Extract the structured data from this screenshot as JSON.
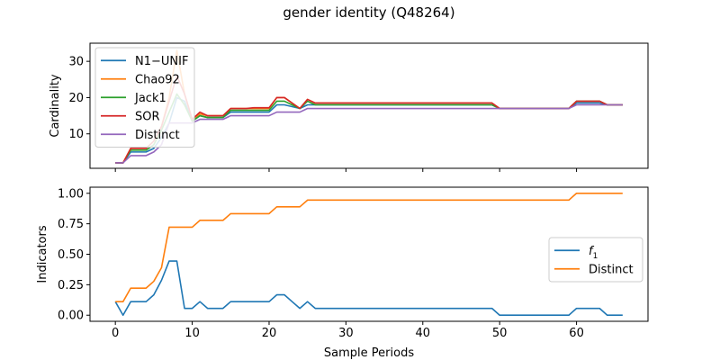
{
  "figure": {
    "title": "gender identity (Q48264)"
  },
  "colors": {
    "blue": "#1f77b4",
    "orange": "#ff7f0e",
    "green": "#2ca02c",
    "red": "#d62728",
    "purple": "#9467bd"
  },
  "chart_data": [
    {
      "type": "line",
      "ylabel": "Cardinality",
      "xlabel": "",
      "xlim": [
        -3.3,
        69.3
      ],
      "ylim": [
        0.5,
        35
      ],
      "xticks": [
        0,
        10,
        20,
        30,
        40,
        50,
        60
      ],
      "show_xtick_labels": false,
      "yticks": [
        10,
        20,
        30
      ],
      "ytick_labels": [
        "10",
        "20",
        "30"
      ],
      "grid": false,
      "legend_position": "upper-left",
      "series": [
        {
          "name": "N1−UNIF",
          "color": "#1f77b4",
          "x": [
            0,
            1,
            2,
            3,
            4,
            5,
            6,
            7,
            8,
            9,
            10,
            11,
            12,
            13,
            14,
            15,
            16,
            17,
            18,
            19,
            20,
            21,
            22,
            23,
            24,
            25,
            26,
            49,
            50,
            59,
            60,
            61,
            62,
            63,
            64,
            65,
            66
          ],
          "y": [
            2,
            2,
            5,
            5,
            5,
            6,
            9,
            13,
            20,
            19,
            13.5,
            15,
            14.5,
            14.5,
            14.5,
            16,
            16,
            16,
            16,
            16,
            16,
            18,
            18,
            17.5,
            17,
            18,
            18,
            18,
            17,
            17,
            18.5,
            18.5,
            18.5,
            18.5,
            18,
            18,
            18
          ]
        },
        {
          "name": "Chao92",
          "color": "#ff7f0e",
          "x": [
            0,
            1,
            2,
            3,
            4,
            5,
            6,
            7,
            8,
            9,
            10,
            11,
            12,
            13,
            14,
            15,
            16,
            17,
            18,
            19,
            20,
            21,
            22,
            23,
            24,
            25,
            26,
            49,
            50,
            59,
            60,
            61,
            62,
            63,
            64,
            65,
            66
          ],
          "y": [
            2,
            2,
            6,
            6,
            6,
            8,
            12,
            20,
            33,
            21,
            14,
            15.5,
            15,
            15,
            15,
            17,
            17,
            17,
            17,
            17,
            17,
            20,
            20,
            18.5,
            17,
            19.5,
            18.5,
            18.5,
            17,
            17,
            19,
            19,
            19,
            19,
            18,
            18,
            18
          ]
        },
        {
          "name": "Jack1",
          "color": "#2ca02c",
          "x": [
            0,
            1,
            2,
            3,
            4,
            5,
            6,
            7,
            8,
            9,
            10,
            11,
            12,
            13,
            14,
            15,
            16,
            17,
            18,
            19,
            20,
            21,
            22,
            23,
            24,
            25,
            26,
            49,
            50,
            59,
            60,
            61,
            62,
            63,
            64,
            65,
            66
          ],
          "y": [
            2,
            2,
            5.5,
            5.5,
            5.5,
            7,
            11,
            16,
            21,
            18,
            13.5,
            15,
            14.5,
            14.5,
            14.5,
            16.5,
            16.5,
            16.5,
            16.5,
            16.5,
            16.5,
            19,
            19,
            18,
            17,
            19,
            18,
            18,
            17,
            17,
            19,
            19,
            19,
            19,
            18,
            18,
            18
          ]
        },
        {
          "name": "SOR",
          "color": "#d62728",
          "x": [
            0,
            1,
            2,
            3,
            4,
            5,
            6,
            7,
            8,
            9,
            10,
            11,
            12,
            13,
            14,
            15,
            16,
            17,
            18,
            19,
            20,
            21,
            22,
            23,
            24,
            25,
            26,
            49,
            50,
            59,
            60,
            61,
            62,
            63,
            64,
            65,
            66
          ],
          "y": [
            2,
            2,
            6,
            6,
            6,
            8,
            12,
            19,
            26,
            21,
            14,
            16,
            15,
            15,
            15,
            17,
            17,
            17,
            17.2,
            17.2,
            17.2,
            20,
            20,
            18.5,
            17,
            19.5,
            18.5,
            18.5,
            17,
            17,
            19,
            19,
            19,
            19,
            18,
            18,
            18
          ]
        },
        {
          "name": "Distinct",
          "color": "#9467bd",
          "x": [
            0,
            1,
            2,
            3,
            4,
            5,
            6,
            7,
            8,
            9,
            10,
            11,
            12,
            13,
            14,
            15,
            16,
            17,
            18,
            19,
            20,
            21,
            22,
            23,
            24,
            25,
            26,
            49,
            50,
            59,
            60,
            61,
            62,
            63,
            64,
            65,
            66
          ],
          "y": [
            2,
            2,
            4,
            4,
            4,
            5,
            7,
            13,
            13,
            13,
            13,
            14,
            14,
            14,
            14,
            15,
            15,
            15,
            15,
            15,
            15,
            16,
            16,
            16,
            16,
            17,
            17,
            17,
            17,
            17,
            18,
            18,
            18,
            18,
            18,
            18,
            18
          ]
        }
      ]
    },
    {
      "type": "line",
      "ylabel": "Indicators",
      "xlabel": "Sample Periods",
      "xlim": [
        -3.3,
        69.3
      ],
      "ylim": [
        -0.05,
        1.05
      ],
      "xticks": [
        0,
        10,
        20,
        30,
        40,
        50,
        60
      ],
      "xtick_labels": [
        "0",
        "10",
        "20",
        "30",
        "40",
        "50",
        "60"
      ],
      "show_xtick_labels": true,
      "yticks": [
        0,
        0.25,
        0.5,
        0.75,
        1.0
      ],
      "ytick_labels": [
        "0.00",
        "0.25",
        "0.50",
        "0.75",
        "1.00"
      ],
      "grid": false,
      "legend_position": "center-right",
      "series": [
        {
          "name": "f",
          "name_subscript": "1",
          "color": "#1f77b4",
          "x": [
            0,
            1,
            2,
            3,
            4,
            5,
            6,
            7,
            8,
            9,
            10,
            11,
            12,
            13,
            14,
            15,
            16,
            17,
            18,
            19,
            20,
            21,
            22,
            23,
            24,
            25,
            26,
            49,
            50,
            59,
            60,
            61,
            62,
            63,
            64,
            65,
            66
          ],
          "y": [
            0.111,
            0,
            0.111,
            0.111,
            0.111,
            0.167,
            0.286,
            0.444,
            0.444,
            0.056,
            0.056,
            0.111,
            0.056,
            0.056,
            0.056,
            0.111,
            0.111,
            0.111,
            0.111,
            0.111,
            0.111,
            0.167,
            0.167,
            0.111,
            0.056,
            0.111,
            0.056,
            0.056,
            0,
            0,
            0.056,
            0.056,
            0.056,
            0.056,
            0,
            0,
            0
          ]
        },
        {
          "name": "Distinct",
          "color": "#ff7f0e",
          "x": [
            0,
            1,
            2,
            3,
            4,
            5,
            6,
            7,
            8,
            9,
            10,
            11,
            12,
            13,
            14,
            15,
            16,
            17,
            18,
            19,
            20,
            21,
            22,
            23,
            24,
            25,
            26,
            49,
            50,
            59,
            60,
            61,
            62,
            63,
            64,
            65,
            66
          ],
          "y": [
            0.111,
            0.111,
            0.222,
            0.222,
            0.222,
            0.278,
            0.389,
            0.722,
            0.722,
            0.722,
            0.722,
            0.778,
            0.778,
            0.778,
            0.778,
            0.833,
            0.833,
            0.833,
            0.833,
            0.833,
            0.833,
            0.889,
            0.889,
            0.889,
            0.889,
            0.944,
            0.944,
            0.944,
            0.944,
            0.944,
            1,
            1,
            1,
            1,
            1,
            1,
            1
          ]
        }
      ]
    }
  ]
}
